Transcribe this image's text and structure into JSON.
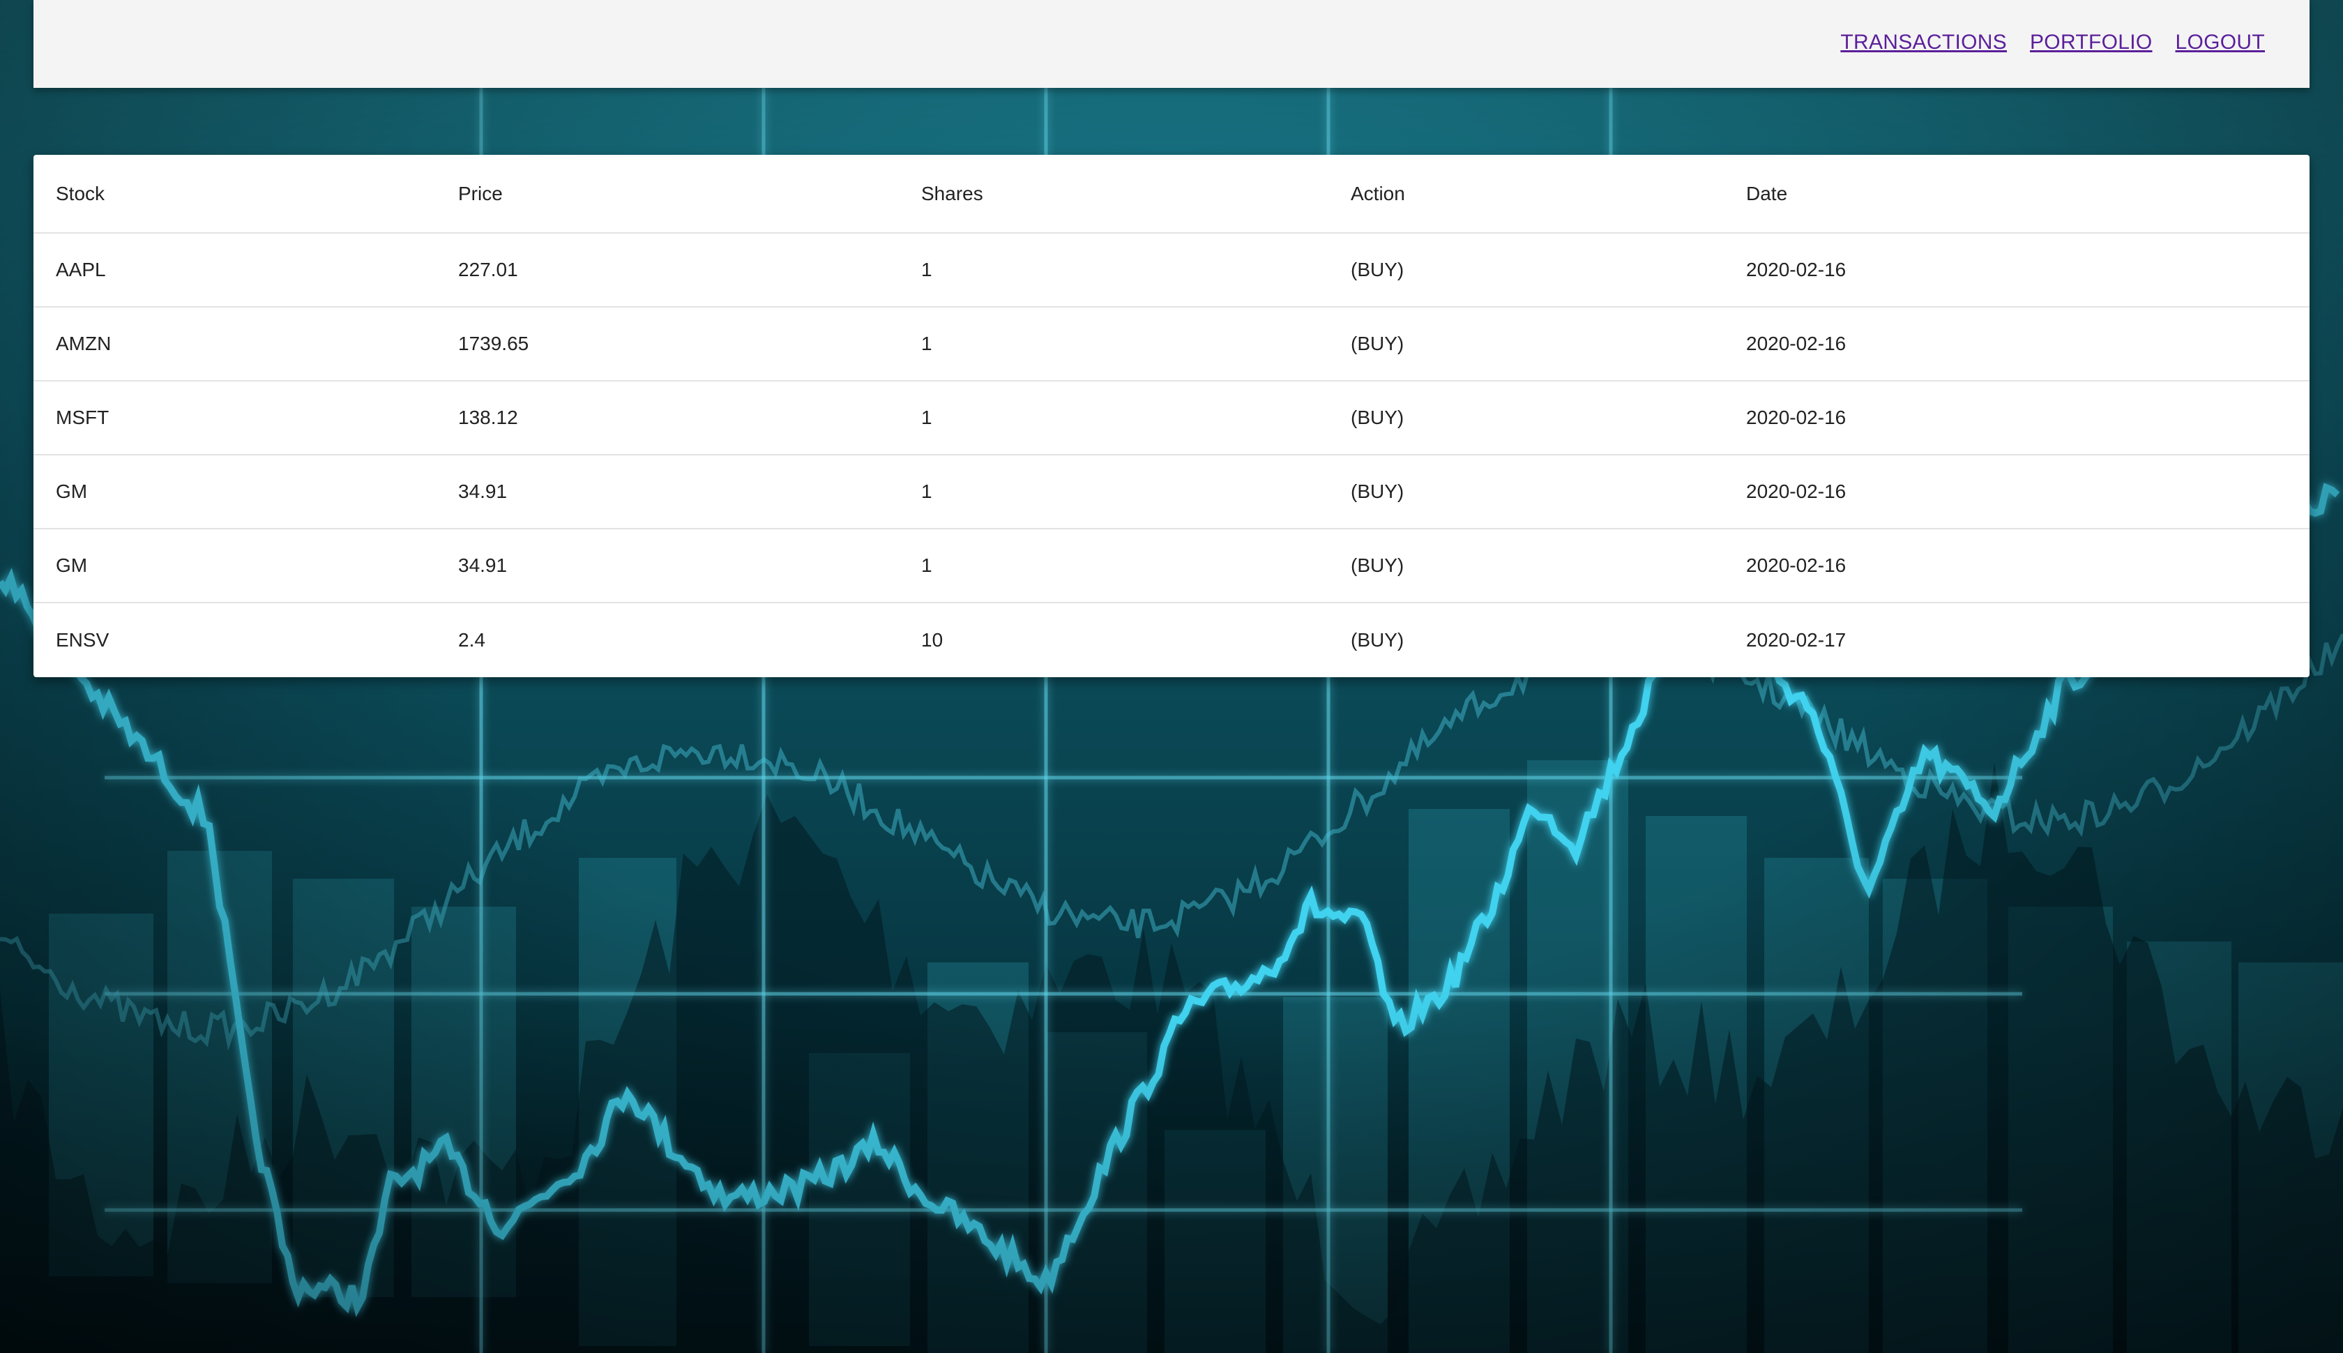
{
  "nav": {
    "transactions_label": "TRANSACTIONS",
    "portfolio_label": "PORTFOLIO",
    "logout_label": "LOGOUT",
    "link_color": "#5b1f9a"
  },
  "table": {
    "headers": {
      "stock": "Stock",
      "price": "Price",
      "shares": "Shares",
      "action": "Action",
      "date": "Date"
    },
    "rows": [
      {
        "stock": "AAPL",
        "price": "227.01",
        "shares": "1",
        "action": "(BUY)",
        "date": "2020-02-16"
      },
      {
        "stock": "AMZN",
        "price": "1739.65",
        "shares": "1",
        "action": "(BUY)",
        "date": "2020-02-16"
      },
      {
        "stock": "MSFT",
        "price": "138.12",
        "shares": "1",
        "action": "(BUY)",
        "date": "2020-02-16"
      },
      {
        "stock": "GM",
        "price": "34.91",
        "shares": "1",
        "action": "(BUY)",
        "date": "2020-02-16"
      },
      {
        "stock": "GM",
        "price": "34.91",
        "shares": "1",
        "action": "(BUY)",
        "date": "2020-02-16"
      },
      {
        "stock": "ENSV",
        "price": "2.4",
        "shares": "10",
        "action": "(BUY)",
        "date": "2020-02-17"
      }
    ]
  },
  "background": {
    "theme": "stock-market-chart",
    "colors": {
      "dark": "#021217",
      "mid": "#0a4a57",
      "light": "#17798a",
      "line": "#3fd2ee"
    }
  }
}
